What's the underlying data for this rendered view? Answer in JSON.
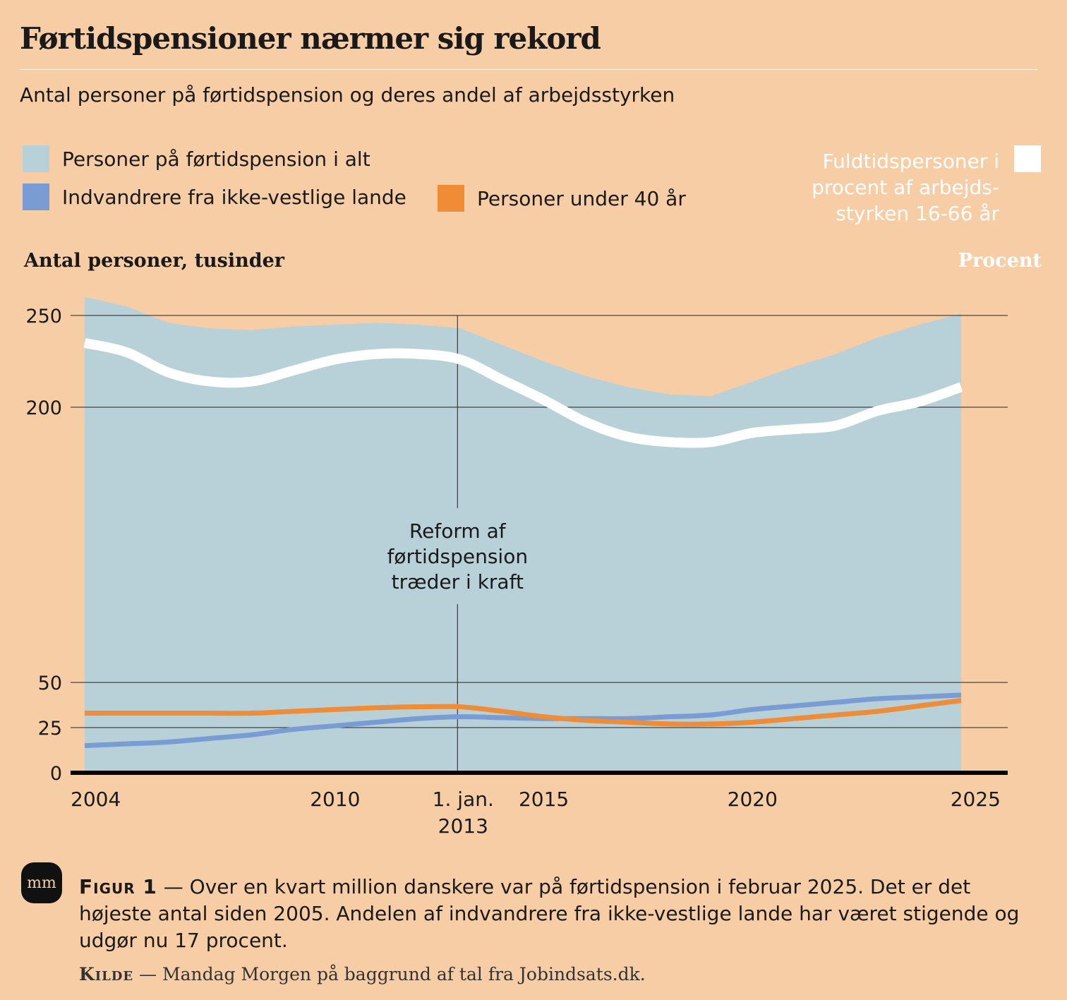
{
  "title": "Førtidspensioner nærmer sig rekord",
  "subtitle": "Antal personer på førtidspension og deres andel af arbejdsstyrken",
  "legend": {
    "total": "Personer på førtidspension i alt",
    "immigrants": "Indvandrere fra ikke-vestlige lande",
    "under40": "Personer under 40 år",
    "percent": "Fuldtidspersoner i procent af arbejds-styrken 16-66 år"
  },
  "axis_titles": {
    "left": "Antal personer, tusinder",
    "right": "Procent"
  },
  "annotation": {
    "line1": "Reform af",
    "line2": "førtidspension",
    "line3": "træder i kraft"
  },
  "caption": {
    "label": "Figur 1",
    "text": "— Over en kvart million danskere var på førtidspension i februar 2025. Det er det højeste antal siden 2005. Andelen af indvandrere fra ikke-vestlige lande har været stigende og udgør nu 17 procent."
  },
  "source": {
    "label": "Kilde",
    "text": "— Mandag Morgen på baggrund af tal fra Jobindsats.dk."
  },
  "logo": "mm",
  "colors": {
    "background": "#F7CDA6",
    "total_area": "#B8D0D8",
    "immigrants": "#7A9CD4",
    "under40": "#F08C35",
    "percent_line": "#FFFFFF"
  },
  "chart_data": {
    "type": "area",
    "ylim": [
      0,
      250
    ],
    "yticks": [
      0,
      25,
      50,
      200,
      250
    ],
    "x_ticks": [
      {
        "year": 2004,
        "label": "2004"
      },
      {
        "year": 2010,
        "label": "2010"
      },
      {
        "year": 2013,
        "label": "1. jan. 2013"
      },
      {
        "year": 2015,
        "label": "2015"
      },
      {
        "year": 2020,
        "label": "2020"
      },
      {
        "year": 2025,
        "label": "2025"
      }
    ],
    "reform_year": 2013,
    "x": [
      2004,
      2005,
      2006,
      2007,
      2008,
      2009,
      2010,
      2011,
      2012,
      2013,
      2014,
      2015,
      2016,
      2017,
      2018,
      2019,
      2020,
      2021,
      2022,
      2023,
      2024,
      2025
    ],
    "series": [
      {
        "name": "Personer på førtidspension i alt",
        "kind": "area",
        "values": [
          260,
          255,
          246,
          243,
          242,
          244,
          245,
          246,
          245,
          243,
          234,
          225,
          217,
          211,
          207,
          206,
          214,
          222,
          229,
          238,
          245,
          251
        ]
      },
      {
        "name": "Fuldtidspersoner i procent af arbejdsstyrken 16-66 år",
        "kind": "line",
        "values": [
          235,
          230,
          219,
          214,
          214,
          220,
          226,
          229,
          229,
          226,
          215,
          204,
          192,
          184,
          181,
          181,
          186,
          188,
          190,
          198,
          203,
          211
        ]
      },
      {
        "name": "Indvandrere fra ikke-vestlige lande",
        "kind": "line",
        "values": [
          15,
          16,
          17,
          19,
          21,
          24,
          26,
          28,
          30,
          31,
          30.5,
          30,
          30,
          30,
          31,
          32,
          35,
          37,
          39,
          41,
          42,
          43
        ]
      },
      {
        "name": "Personer under 40 år",
        "kind": "line",
        "values": [
          33,
          33,
          33,
          33,
          33,
          34,
          35,
          36,
          36.5,
          36.5,
          34,
          31,
          29,
          28,
          27,
          27,
          28,
          30,
          32,
          34,
          37,
          40
        ]
      }
    ]
  }
}
